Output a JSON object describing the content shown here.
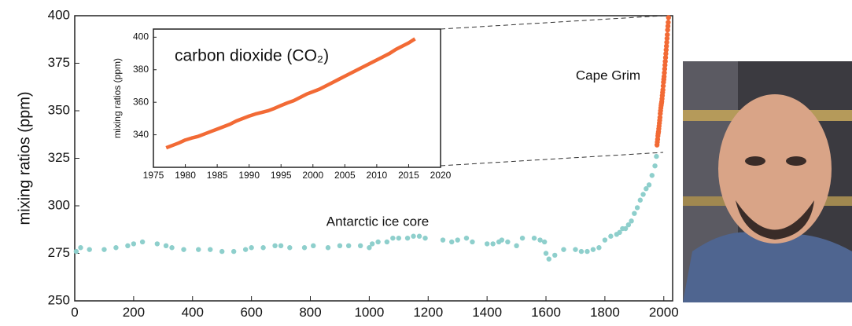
{
  "chart_data": [
    {
      "type": "scatter",
      "y_label": "mixing ratios (ppm)",
      "xlim": [
        0,
        2030
      ],
      "ylim": [
        250,
        400
      ],
      "xticks": [
        0,
        200,
        400,
        600,
        800,
        1000,
        1200,
        1400,
        1600,
        1800,
        2000
      ],
      "yticks": [
        250,
        275,
        300,
        325,
        350,
        375,
        400
      ],
      "annotations": [
        "Antarctic ice core",
        "Cape Grim"
      ],
      "series": [
        {
          "name": "Antarctic ice core",
          "color": "#8ecfcc",
          "x": [
            5,
            20,
            50,
            100,
            140,
            180,
            200,
            230,
            280,
            310,
            330,
            370,
            420,
            460,
            500,
            540,
            580,
            600,
            640,
            680,
            700,
            730,
            780,
            810,
            860,
            900,
            930,
            970,
            1000,
            1010,
            1030,
            1060,
            1080,
            1100,
            1130,
            1150,
            1170,
            1190,
            1250,
            1280,
            1300,
            1330,
            1350,
            1400,
            1420,
            1440,
            1450,
            1470,
            1500,
            1520,
            1560,
            1580,
            1595,
            1600,
            1610,
            1630,
            1660,
            1700,
            1720,
            1740,
            1760,
            1780,
            1800,
            1820,
            1840,
            1850,
            1860,
            1870,
            1880,
            1890,
            1900,
            1910,
            1920,
            1930,
            1940,
            1950,
            1960,
            1970,
            1975
          ],
          "values": [
            276,
            278,
            277,
            277,
            278,
            279,
            280,
            281,
            280,
            279,
            278,
            277,
            277,
            277,
            276,
            276,
            277,
            278,
            278,
            279,
            279,
            278,
            278,
            279,
            278,
            279,
            279,
            279,
            278,
            280,
            281,
            281,
            283,
            283,
            283,
            284,
            284,
            283,
            282,
            281,
            282,
            283,
            281,
            280,
            280,
            281,
            282,
            281,
            279,
            283,
            283,
            282,
            281,
            275,
            272,
            274,
            277,
            277,
            276,
            276,
            277,
            278,
            282,
            284,
            285,
            286,
            288,
            288,
            290,
            292,
            296,
            299,
            303,
            306,
            309,
            311,
            316,
            321,
            326
          ]
        },
        {
          "name": "Cape Grim",
          "color": "#f26a35",
          "x": [
            1977,
            1978,
            1979,
            1980,
            1981,
            1982,
            1983,
            1984,
            1985,
            1986,
            1987,
            1988,
            1989,
            1990,
            1991,
            1992,
            1993,
            1994,
            1995,
            1996,
            1997,
            1998,
            1999,
            2000,
            2001,
            2002,
            2003,
            2004,
            2005,
            2006,
            2007,
            2008,
            2009,
            2010,
            2011,
            2012,
            2013,
            2014,
            2015,
            2016
          ],
          "values": [
            332,
            333.5,
            335,
            336.8,
            338,
            339,
            340.5,
            342,
            343.5,
            345,
            346.5,
            348.5,
            350,
            351.5,
            352.8,
            353.8,
            354.8,
            356.3,
            358,
            359.6,
            361,
            363,
            365,
            366.5,
            368,
            370,
            372,
            374,
            376,
            378,
            380,
            382,
            384,
            386,
            388,
            390,
            392.5,
            394.5,
            396.5,
            399
          ]
        }
      ]
    },
    {
      "type": "line",
      "title": "carbon dioxide (CO₂)",
      "y_label": "mixing ratios (ppm)",
      "xlim": [
        1975,
        2020
      ],
      "ylim": [
        320,
        405
      ],
      "xticks": [
        1975,
        1980,
        1985,
        1990,
        1995,
        2000,
        2005,
        2010,
        2015,
        2020
      ],
      "yticks": [
        340,
        360,
        380,
        400
      ],
      "series": [
        {
          "name": "Cape Grim",
          "color": "#f26a35",
          "x": [
            1977,
            1978,
            1979,
            1980,
            1981,
            1982,
            1983,
            1984,
            1985,
            1986,
            1987,
            1988,
            1989,
            1990,
            1991,
            1992,
            1993,
            1994,
            1995,
            1996,
            1997,
            1998,
            1999,
            2000,
            2001,
            2002,
            2003,
            2004,
            2005,
            2006,
            2007,
            2008,
            2009,
            2010,
            2011,
            2012,
            2013,
            2014,
            2015,
            2016
          ],
          "values": [
            332,
            333.5,
            335,
            336.8,
            338,
            339,
            340.5,
            342,
            343.5,
            345,
            346.5,
            348.5,
            350,
            351.5,
            352.8,
            353.8,
            354.8,
            356.3,
            358,
            359.6,
            361,
            363,
            365,
            366.5,
            368,
            370,
            372,
            374,
            376,
            378,
            380,
            382,
            384,
            386,
            388,
            390,
            392.5,
            394.5,
            396.5,
            399
          ]
        }
      ]
    }
  ]
}
